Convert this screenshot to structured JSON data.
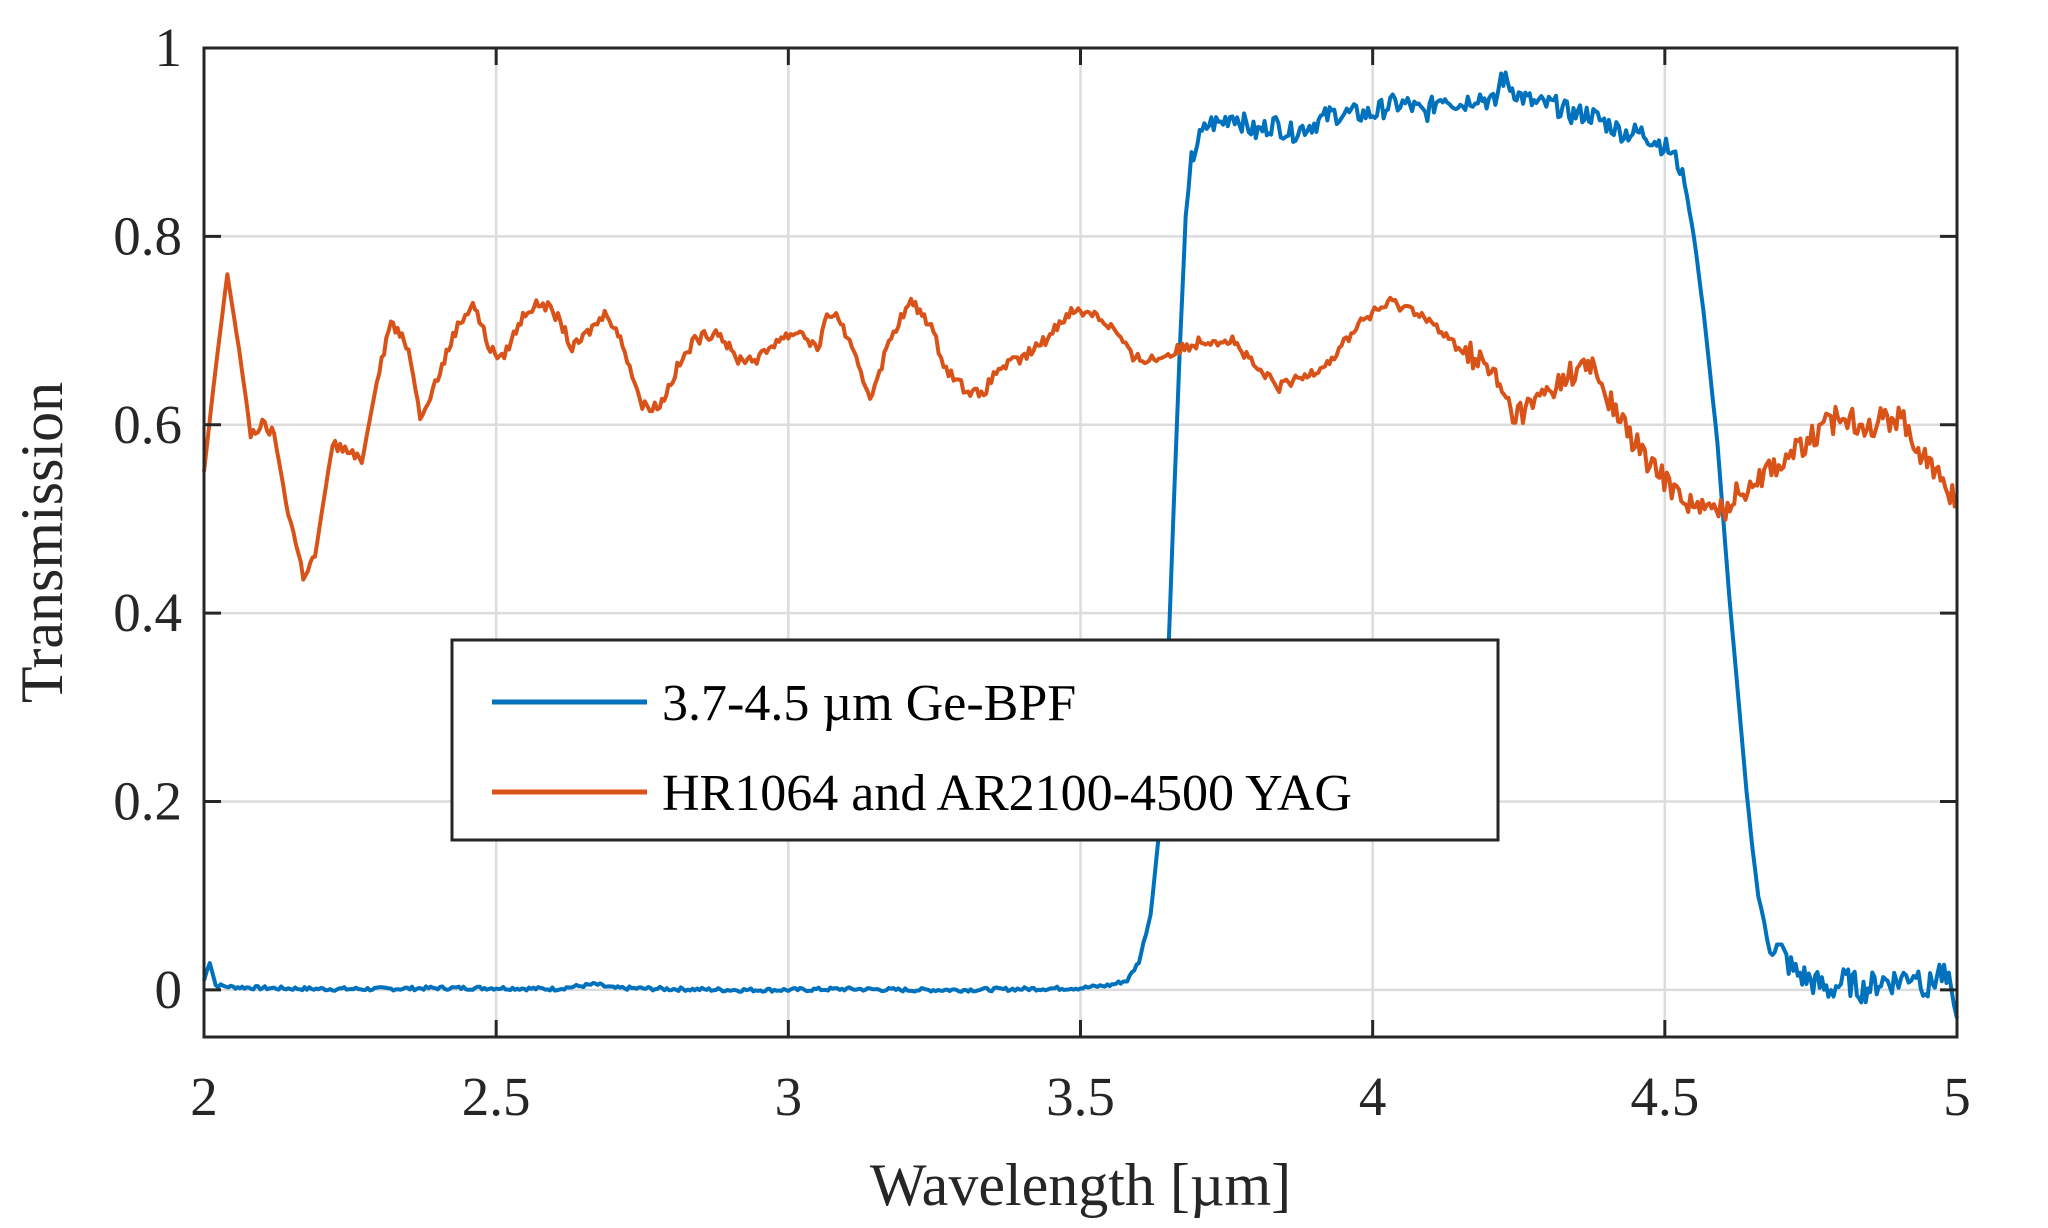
{
  "chart_data": {
    "type": "line",
    "title": "",
    "xlabel": "Wavelength [µm]",
    "ylabel": "Transmission",
    "xlim": [
      2,
      5
    ],
    "ylim": [
      -0.05,
      1
    ],
    "xticks": [
      2,
      2.5,
      3,
      3.5,
      4,
      4.5,
      5
    ],
    "xtick_labels": [
      "2",
      "2.5",
      "3",
      "3.5",
      "4",
      "4.5",
      "5"
    ],
    "yticks": [
      0,
      0.2,
      0.4,
      0.6,
      0.8,
      1
    ],
    "ytick_labels": [
      "0",
      "0.2",
      "0.4",
      "0.6",
      "0.8",
      "1"
    ],
    "grid": true,
    "legend_placement": "center-left",
    "series": [
      {
        "name": "3.7-4.5 µm Ge-BPF",
        "color": "#0072BD",
        "x": [
          2.0,
          2.01,
          2.02,
          2.05,
          2.1,
          2.2,
          2.3,
          2.4,
          2.5,
          2.6,
          2.67,
          2.7,
          2.8,
          2.9,
          3.0,
          3.1,
          3.2,
          3.3,
          3.4,
          3.5,
          3.55,
          3.58,
          3.6,
          3.62,
          3.64,
          3.65,
          3.66,
          3.67,
          3.68,
          3.69,
          3.7,
          3.72,
          3.74,
          3.76,
          3.78,
          3.8,
          3.83,
          3.86,
          3.9,
          3.93,
          3.96,
          4.0,
          4.03,
          4.06,
          4.09,
          4.12,
          4.15,
          4.18,
          4.21,
          4.22,
          4.25,
          4.28,
          4.31,
          4.34,
          4.37,
          4.4,
          4.43,
          4.46,
          4.49,
          4.51,
          4.53,
          4.55,
          4.57,
          4.59,
          4.6,
          4.61,
          4.62,
          4.63,
          4.64,
          4.65,
          4.66,
          4.67,
          4.68,
          4.7,
          4.72,
          4.75,
          4.78,
          4.81,
          4.84,
          4.87,
          4.9,
          4.93,
          4.95,
          4.97,
          4.99,
          5.0
        ],
        "values": [
          0.01,
          0.03,
          0.005,
          0.003,
          0.002,
          0.001,
          0.001,
          0.002,
          0.002,
          0.001,
          0.006,
          0.002,
          0.001,
          0.0,
          0.0,
          0.001,
          0.0,
          0.0,
          0.001,
          0.002,
          0.005,
          0.01,
          0.03,
          0.08,
          0.2,
          0.35,
          0.52,
          0.68,
          0.82,
          0.88,
          0.9,
          0.92,
          0.92,
          0.93,
          0.92,
          0.91,
          0.92,
          0.91,
          0.92,
          0.93,
          0.93,
          0.93,
          0.94,
          0.94,
          0.93,
          0.95,
          0.94,
          0.95,
          0.94,
          0.97,
          0.95,
          0.94,
          0.94,
          0.93,
          0.93,
          0.92,
          0.91,
          0.91,
          0.9,
          0.89,
          0.87,
          0.8,
          0.7,
          0.58,
          0.5,
          0.42,
          0.35,
          0.28,
          0.21,
          0.15,
          0.1,
          0.07,
          0.05,
          0.04,
          0.02,
          0.01,
          0.0,
          0.01,
          0.0,
          0.01,
          0.01,
          0.02,
          0.0,
          0.02,
          0.0,
          -0.03
        ]
      },
      {
        "name": "HR1064 and AR2100-4500 YAG",
        "color": "#D95319",
        "x": [
          2.0,
          2.02,
          2.04,
          2.06,
          2.08,
          2.1,
          2.12,
          2.14,
          2.17,
          2.19,
          2.22,
          2.25,
          2.27,
          2.3,
          2.32,
          2.35,
          2.37,
          2.4,
          2.43,
          2.46,
          2.49,
          2.51,
          2.55,
          2.58,
          2.61,
          2.63,
          2.66,
          2.69,
          2.72,
          2.75,
          2.78,
          2.81,
          2.84,
          2.88,
          2.91,
          2.95,
          2.98,
          3.02,
          3.05,
          3.07,
          3.09,
          3.12,
          3.14,
          3.18,
          3.21,
          3.24,
          3.27,
          3.3,
          3.33,
          3.36,
          3.4,
          3.44,
          3.48,
          3.52,
          3.56,
          3.59,
          3.63,
          3.67,
          3.71,
          3.76,
          3.8,
          3.84,
          3.88,
          3.93,
          3.98,
          4.03,
          4.08,
          4.13,
          4.18,
          4.21,
          4.24,
          4.27,
          4.31,
          4.35,
          4.38,
          4.4,
          4.44,
          4.47,
          4.52,
          4.56,
          4.6,
          4.63,
          4.67,
          4.72,
          4.76,
          4.8,
          4.85,
          4.9,
          4.93,
          4.96,
          5.0
        ],
        "values": [
          0.55,
          0.66,
          0.76,
          0.68,
          0.59,
          0.6,
          0.59,
          0.52,
          0.44,
          0.46,
          0.58,
          0.57,
          0.56,
          0.66,
          0.71,
          0.68,
          0.61,
          0.65,
          0.7,
          0.73,
          0.68,
          0.67,
          0.72,
          0.73,
          0.71,
          0.68,
          0.7,
          0.72,
          0.68,
          0.62,
          0.62,
          0.66,
          0.69,
          0.7,
          0.67,
          0.67,
          0.69,
          0.7,
          0.68,
          0.72,
          0.71,
          0.66,
          0.63,
          0.7,
          0.73,
          0.71,
          0.66,
          0.64,
          0.63,
          0.66,
          0.67,
          0.69,
          0.72,
          0.72,
          0.7,
          0.67,
          0.67,
          0.68,
          0.69,
          0.69,
          0.66,
          0.64,
          0.65,
          0.67,
          0.71,
          0.73,
          0.72,
          0.69,
          0.67,
          0.65,
          0.61,
          0.62,
          0.64,
          0.66,
          0.66,
          0.63,
          0.59,
          0.56,
          0.53,
          0.51,
          0.51,
          0.53,
          0.55,
          0.57,
          0.59,
          0.61,
          0.6,
          0.61,
          0.58,
          0.55,
          0.52
        ]
      }
    ]
  }
}
